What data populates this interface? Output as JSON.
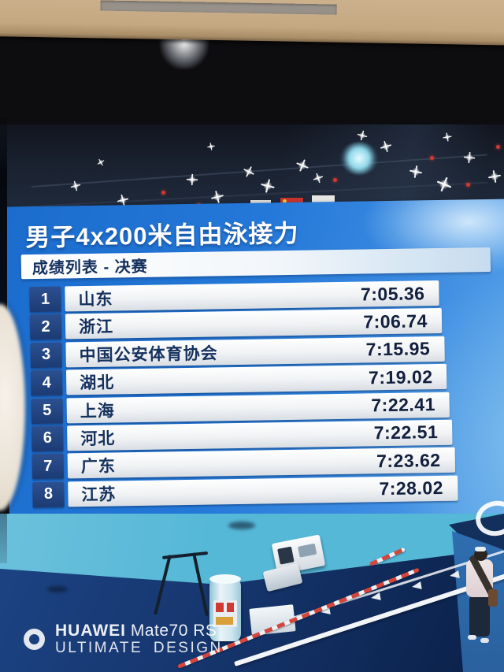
{
  "scoreboard": {
    "title": "男子4x200米自由泳接力",
    "subtitle": "成绩列表 - 决赛",
    "results": [
      {
        "rank": "1",
        "team": "山东",
        "time": "7:05.36"
      },
      {
        "rank": "2",
        "team": "浙江",
        "time": "7:06.74"
      },
      {
        "rank": "3",
        "team": "中国公安体育协会",
        "time": "7:15.95"
      },
      {
        "rank": "4",
        "team": "湖北",
        "time": "7:19.02"
      },
      {
        "rank": "5",
        "team": "上海",
        "time": "7:22.41"
      },
      {
        "rank": "6",
        "team": "河北",
        "time": "7:22.51"
      },
      {
        "rank": "7",
        "team": "广东",
        "time": "7:23.62"
      },
      {
        "rank": "8",
        "team": "江苏",
        "time": "7:28.02"
      }
    ]
  },
  "watermark": {
    "brand": "HUAWEI",
    "model": "Mate70 RS",
    "tagline": "ULTIMATE DESIGN"
  },
  "colors": {
    "panel_blue": "#2478d8",
    "badge_navy": "#1c3b74",
    "row_white": "#f0f2f4",
    "text_navy": "#15315e",
    "deck_cyan": "#56b8d7",
    "pool_navy": "#16366e",
    "rope_red": "#d6453c"
  }
}
